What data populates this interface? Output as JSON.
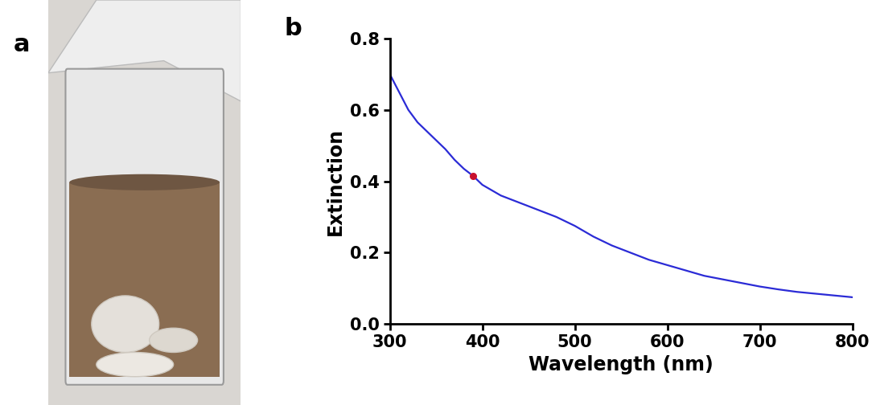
{
  "panel_labels": [
    "a",
    "b"
  ],
  "chart_data": {
    "type": "line",
    "x_label": "Wavelength (nm)",
    "y_label": "Extinction",
    "series": [
      {
        "type": "line",
        "color": "#2b2bd6",
        "x": [
          300,
          310,
          320,
          330,
          340,
          350,
          360,
          370,
          380,
          390,
          400,
          420,
          440,
          460,
          480,
          500,
          520,
          540,
          560,
          580,
          600,
          620,
          640,
          660,
          680,
          700,
          720,
          740,
          760,
          780,
          800
        ],
        "values": [
          0.7,
          0.65,
          0.6,
          0.565,
          0.54,
          0.515,
          0.49,
          0.46,
          0.435,
          0.415,
          0.39,
          0.36,
          0.34,
          0.32,
          0.3,
          0.275,
          0.245,
          0.22,
          0.2,
          0.18,
          0.165,
          0.15,
          0.135,
          0.125,
          0.115,
          0.105,
          0.097,
          0.09,
          0.085,
          0.08,
          0.075
        ]
      },
      {
        "type": "scatter",
        "color": "#c8102e",
        "marker": "o",
        "x": [
          390
        ],
        "values": [
          0.415
        ]
      }
    ],
    "xlim": [
      300,
      800
    ],
    "xticks": [
      300,
      400,
      500,
      600,
      700,
      800
    ],
    "ylim": [
      0.0,
      0.8
    ],
    "yticks": [
      0.0,
      0.2,
      0.4,
      0.6,
      0.8
    ],
    "grid": false
  }
}
